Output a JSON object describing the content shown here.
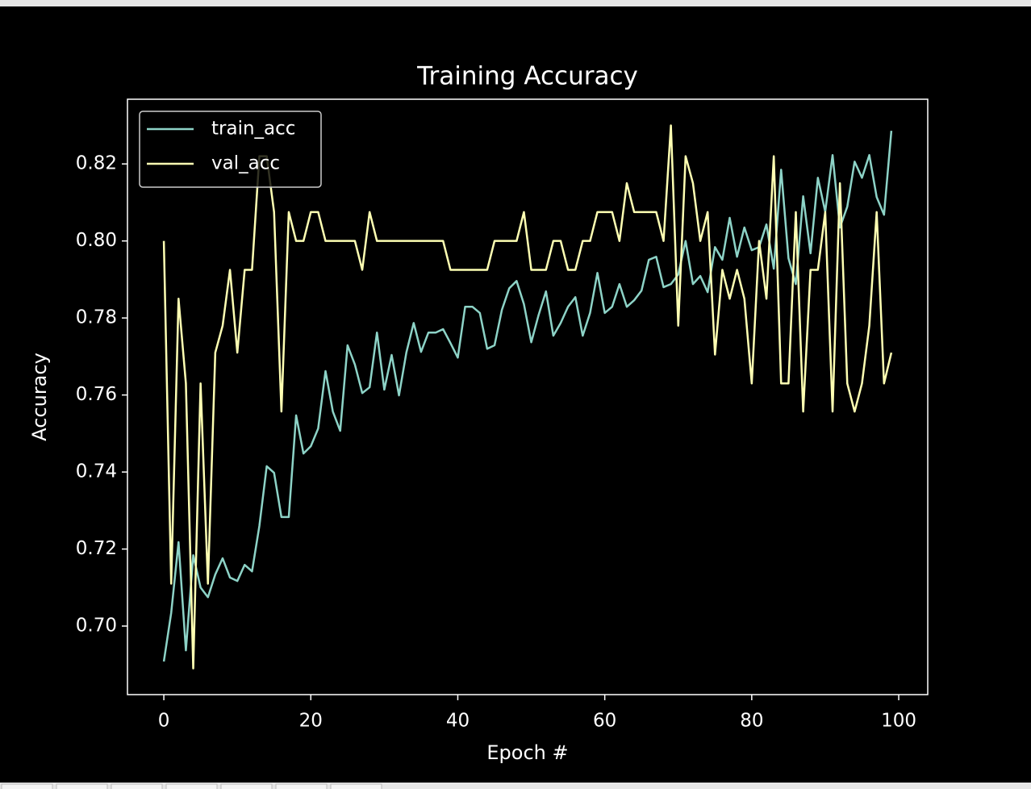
{
  "chart_data": {
    "type": "line",
    "title": "Training Accuracy",
    "xlabel": "Epoch #",
    "ylabel": "Accuracy",
    "x": [
      0,
      1,
      2,
      3,
      4,
      5,
      6,
      7,
      8,
      9,
      10,
      11,
      12,
      13,
      14,
      15,
      16,
      17,
      18,
      19,
      20,
      21,
      22,
      23,
      24,
      25,
      26,
      27,
      28,
      29,
      30,
      31,
      32,
      33,
      34,
      35,
      36,
      37,
      38,
      39,
      40,
      41,
      42,
      43,
      44,
      45,
      46,
      47,
      48,
      49,
      50,
      51,
      52,
      53,
      54,
      55,
      56,
      57,
      58,
      59,
      60,
      61,
      62,
      63,
      64,
      65,
      66,
      67,
      68,
      69,
      70,
      71,
      72,
      73,
      74,
      75,
      76,
      77,
      78,
      79,
      80,
      81,
      82,
      83,
      84,
      85,
      86,
      87,
      88,
      89,
      90,
      91,
      92,
      93,
      94,
      95,
      96,
      97,
      98,
      99
    ],
    "series": [
      {
        "name": "train_acc",
        "color": "#8dd3c7",
        "values": [
          0.6908,
          0.7034,
          0.7218,
          0.6937,
          0.7184,
          0.71,
          0.7075,
          0.7134,
          0.7176,
          0.7126,
          0.7117,
          0.7159,
          0.7142,
          0.726,
          0.7415,
          0.7398,
          0.7283,
          0.7283,
          0.7547,
          0.7448,
          0.7467,
          0.7513,
          0.7662,
          0.7557,
          0.7507,
          0.7729,
          0.7679,
          0.7605,
          0.762,
          0.7762,
          0.7614,
          0.7704,
          0.7599,
          0.771,
          0.7787,
          0.7712,
          0.7762,
          0.7762,
          0.7771,
          0.7735,
          0.7697,
          0.7829,
          0.7829,
          0.7813,
          0.772,
          0.7729,
          0.7821,
          0.7877,
          0.7896,
          0.7836,
          0.7737,
          0.7808,
          0.7869,
          0.7754,
          0.7787,
          0.7829,
          0.7854,
          0.7754,
          0.7813,
          0.7917,
          0.7813,
          0.7829,
          0.7888,
          0.7829,
          0.7846,
          0.7871,
          0.7951,
          0.7959,
          0.788,
          0.7888,
          0.7913,
          0.8,
          0.7888,
          0.7909,
          0.7867,
          0.7984,
          0.7951,
          0.806,
          0.7959,
          0.8035,
          0.7976,
          0.7984,
          0.8043,
          0.7928,
          0.8185,
          0.7955,
          0.7888,
          0.8116,
          0.7968,
          0.8164,
          0.8076,
          0.8223,
          0.8035,
          0.8089,
          0.8206,
          0.8164,
          0.8223,
          0.8114,
          0.8068,
          0.8286
        ]
      },
      {
        "name": "val_acc",
        "color": "#feffb3",
        "values": [
          0.8,
          0.711,
          0.785,
          0.763,
          0.689,
          0.763,
          0.711,
          0.771,
          0.778,
          0.7925,
          0.771,
          0.7925,
          0.7925,
          0.822,
          0.822,
          0.8075,
          0.7557,
          0.8075,
          0.8,
          0.8,
          0.8075,
          0.8075,
          0.8,
          0.8,
          0.8,
          0.8,
          0.8,
          0.7925,
          0.8075,
          0.8,
          0.8,
          0.8,
          0.8,
          0.8,
          0.8,
          0.8,
          0.8,
          0.8,
          0.8,
          0.7925,
          0.7925,
          0.7925,
          0.7925,
          0.7925,
          0.7925,
          0.8,
          0.8,
          0.8,
          0.8,
          0.8075,
          0.7925,
          0.7925,
          0.7925,
          0.8,
          0.8,
          0.7925,
          0.7925,
          0.8,
          0.8,
          0.8075,
          0.8075,
          0.8075,
          0.8,
          0.815,
          0.8075,
          0.8075,
          0.8075,
          0.8075,
          0.8,
          0.83,
          0.778,
          0.822,
          0.815,
          0.8,
          0.8075,
          0.7705,
          0.7925,
          0.785,
          0.7925,
          0.785,
          0.763,
          0.8,
          0.785,
          0.822,
          0.763,
          0.763,
          0.8075,
          0.7557,
          0.7925,
          0.7925,
          0.8075,
          0.7557,
          0.815,
          0.763,
          0.7557,
          0.763,
          0.778,
          0.8075,
          0.763,
          0.771
        ]
      }
    ],
    "xlim": [
      -4.95,
      103.95
    ],
    "xticks": [
      0,
      20,
      40,
      60,
      80,
      100
    ],
    "ylim": [
      0.6822,
      0.8368
    ],
    "yticks": [
      {
        "value": 0.7,
        "label": "0.70"
      },
      0.72,
      0.74,
      0.76,
      0.78,
      {
        "value": 0.8,
        "label": "0.80"
      },
      0.82
    ],
    "legend": "upper left",
    "grid": false
  }
}
